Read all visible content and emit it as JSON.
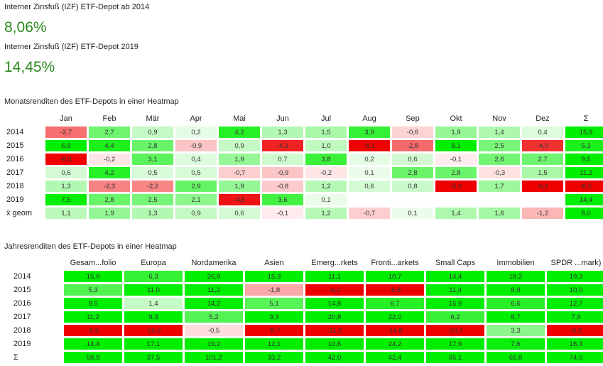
{
  "irr_since_2014": {
    "label": "Interner Zinsfuß (IZF) ETF-Depot ab 2014",
    "value": "8,06%"
  },
  "irr_since_2019": {
    "label": "Interner Zinsfuß (IZF) ETF-Depot 2019",
    "value": "14,45%"
  },
  "monthly": {
    "title": "Monatsrenditen des ETF-Depots in einer Heatmap",
    "headers": [
      "Jan",
      "Feb",
      "Mär",
      "Apr",
      "Mai",
      "Jun",
      "Jul",
      "Aug",
      "Sep",
      "Okt",
      "Nov",
      "Dez",
      "Σ"
    ],
    "rows": [
      {
        "label": "2014",
        "cells": [
          "-2,7",
          "2,7",
          "0,9",
          "0,2",
          "4,2",
          "1,3",
          "1,5",
          "3,9",
          "-0,6",
          "1,9",
          "1,4",
          "0,4",
          "15,9"
        ]
      },
      {
        "label": "2015",
        "cells": [
          "6,9",
          "4,4",
          "2,8",
          "-0,9",
          "0,9",
          "-4,3",
          "1,0",
          "-8,1",
          "-2,8",
          "8,1",
          "2,5",
          "-4,0",
          "5,3"
        ]
      },
      {
        "label": "2016",
        "cells": [
          "-6,4",
          "-0,2",
          "3,1",
          "0,4",
          "1,9",
          "0,7",
          "3,8",
          "0,2",
          "0,6",
          "-0,1",
          "2,6",
          "2,7",
          "9,5"
        ]
      },
      {
        "label": "2017",
        "cells": [
          "0,6",
          "4,2",
          "0,5",
          "0,5",
          "-0,7",
          "-0,9",
          "-0,2",
          "0,1",
          "2,8",
          "2,8",
          "-0,3",
          "1,5",
          "11,2"
        ]
      },
      {
        "label": "2018",
        "cells": [
          "1,3",
          "-2,3",
          "-2,2",
          "2,9",
          "1,9",
          "-0,8",
          "1,2",
          "0,6",
          "0,8",
          "-5,2",
          "1,7",
          "-6,1",
          "-6,5"
        ]
      },
      {
        "label": "2019",
        "cells": [
          "7,5",
          "2,8",
          "2,5",
          "2,1",
          "-4,6",
          "3,6",
          "0,1",
          "",
          "",
          "",
          "",
          "",
          "14,4"
        ]
      },
      {
        "label": "x̄ geom",
        "cells": [
          "1,1",
          "1,9",
          "1,3",
          "0,9",
          "0,6",
          "-0,1",
          "1,2",
          "-0,7",
          "0,1",
          "1,4",
          "1,6",
          "-1,2",
          "8,0"
        ]
      }
    ]
  },
  "annual": {
    "title": "Jahresrenditen des ETF-Depots in einer Heatmap",
    "headers": [
      "Gesam...folio",
      "Europa",
      "Nordamerika",
      "Asien",
      "Emerg...rkets",
      "Fronti...arkets",
      "Small Caps",
      "Immobilien",
      "SPDR ...mark)"
    ],
    "rows": [
      {
        "label": "2014",
        "cells": [
          "15,9",
          "6,3",
          "26,9",
          "15,3",
          "11,1",
          "10,7",
          "14,4",
          "18,2",
          "19,3"
        ]
      },
      {
        "label": "2015",
        "cells": [
          "5,3",
          "11,0",
          "11,2",
          "-1,8",
          "-6,2",
          "-6,8",
          "11,4",
          "8,9",
          "10,0"
        ]
      },
      {
        "label": "2016",
        "cells": [
          "9,5",
          "1,4",
          "14,2",
          "5,1",
          "14,8",
          "6,7",
          "15,9",
          "6,6",
          "12,7"
        ]
      },
      {
        "label": "2017",
        "cells": [
          "11,2",
          "9,3",
          "5,2",
          "9,3",
          "20,8",
          "22,0",
          "6,2",
          "8,7",
          "7,9"
        ]
      },
      {
        "label": "2018",
        "cells": [
          "-6,5",
          "-10,2",
          "-0,5",
          "-8,7",
          "-11,2",
          "-14,8",
          "-10,7",
          "3,3",
          "-6,2"
        ]
      },
      {
        "label": "2019",
        "cells": [
          "14,4",
          "17,1",
          "19,2",
          "12,1",
          "10,6",
          "24,2",
          "17,9",
          "7,6",
          "16,3"
        ]
      },
      {
        "label": "Σ",
        "cells": [
          "58,9",
          "37,5",
          "101,2",
          "33,2",
          "42,0",
          "42,4",
          "65,1",
          "65,8",
          "74,0"
        ]
      }
    ]
  }
}
